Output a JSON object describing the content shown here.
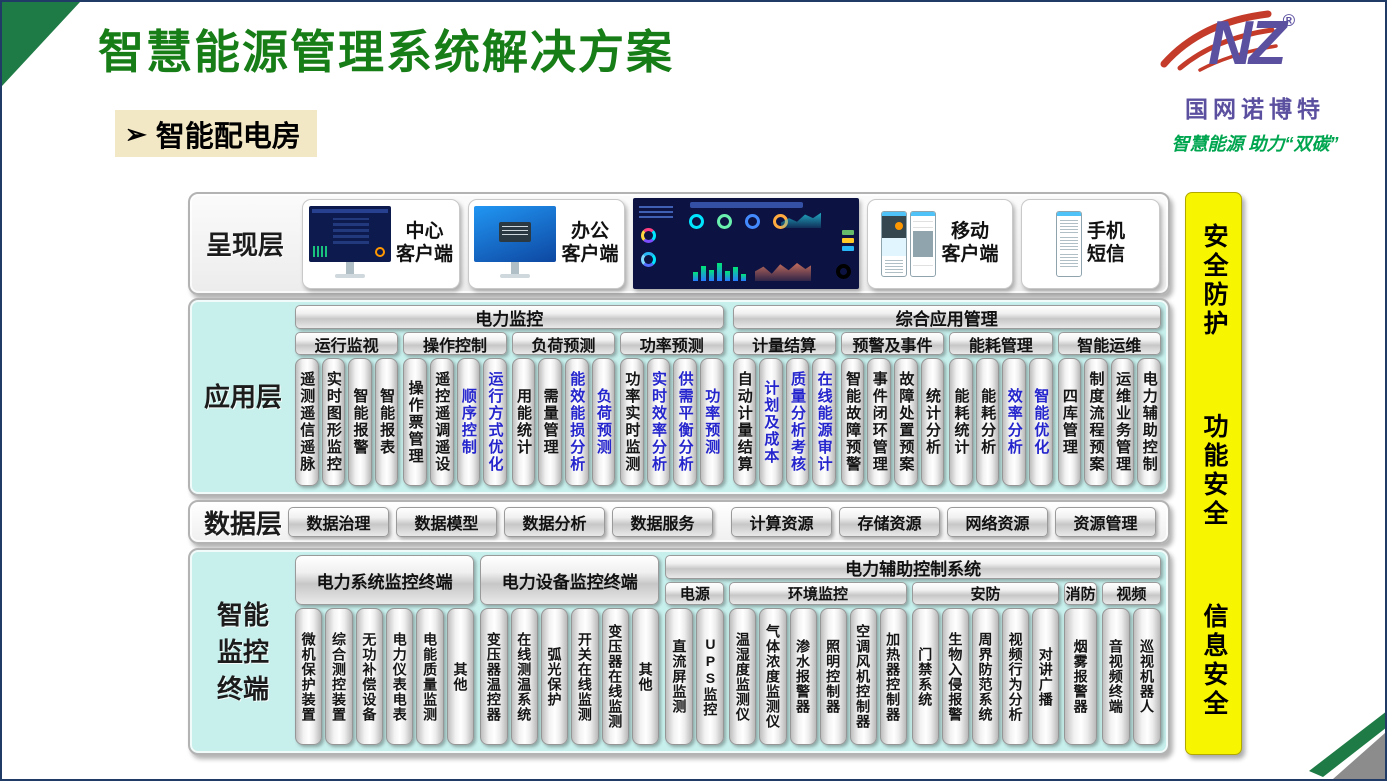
{
  "slide": {
    "title": "智慧能源管理系统解决方案",
    "subtitle": "智能配电房",
    "subtitle_arrow": "➢"
  },
  "logo": {
    "mark": "NZ",
    "reg": "®",
    "company": "国网诺博特",
    "slogan": "智慧能源 助力“双碳”"
  },
  "colors": {
    "title_green": "#177d17",
    "item_blue": "#2525cd",
    "panel_cyan": "#c7efec",
    "security_yellow": "#f7f500",
    "logo_purple": "#5b50a0",
    "slogan_green": "#00a550"
  },
  "presentation_layer": {
    "label": "呈现层",
    "clients": [
      {
        "line1": "中心",
        "line2": "客户端"
      },
      {
        "line1": "办公",
        "line2": "客户端"
      },
      {
        "line1": "移动",
        "line2": "客户端"
      },
      {
        "line1": "手机",
        "line2": "短信"
      }
    ]
  },
  "application_layer": {
    "label": "应用层",
    "sections": [
      {
        "title": "电力监控",
        "groups": [
          {
            "title": "运行监视",
            "items": [
              {
                "label": "遥测遥信遥脉"
              },
              {
                "label": "实时图形监控"
              },
              {
                "label": "智能报警"
              },
              {
                "label": "智能报表"
              }
            ]
          },
          {
            "title": "操作控制",
            "items": [
              {
                "label": "操作票管理"
              },
              {
                "label": "遥控遥调遥设"
              },
              {
                "label": "顺序控制",
                "blue": true
              },
              {
                "label": "运行方式优化",
                "blue": true
              }
            ]
          },
          {
            "title": "负荷预测",
            "items": [
              {
                "label": "用能统计"
              },
              {
                "label": "需量管理"
              },
              {
                "label": "能效能损分析",
                "blue": true
              },
              {
                "label": "负荷预测",
                "blue": true
              }
            ]
          },
          {
            "title": "功率预测",
            "items": [
              {
                "label": "功率实时监测"
              },
              {
                "label": "实时效率分析",
                "blue": true
              },
              {
                "label": "供需平衡分析",
                "blue": true
              },
              {
                "label": "功率预测",
                "blue": true
              }
            ]
          }
        ]
      },
      {
        "title": "综合应用管理",
        "groups": [
          {
            "title": "计量结算",
            "items": [
              {
                "label": "自动计量结算"
              },
              {
                "label": "计划及成本",
                "blue": true
              },
              {
                "label": "质量分析考核",
                "blue": true
              },
              {
                "label": "在线能源审计",
                "blue": true
              }
            ]
          },
          {
            "title": "预警及事件",
            "items": [
              {
                "label": "智能故障预警"
              },
              {
                "label": "事件闭环管理"
              },
              {
                "label": "故障处置预案"
              },
              {
                "label": "统计分析"
              }
            ]
          },
          {
            "title": "能耗管理",
            "items": [
              {
                "label": "能耗统计"
              },
              {
                "label": "能耗分析"
              },
              {
                "label": "效率分析",
                "blue": true
              },
              {
                "label": "智能优化",
                "blue": true
              }
            ]
          },
          {
            "title": "智能运维",
            "items": [
              {
                "label": "四库管理"
              },
              {
                "label": "制度流程预案"
              },
              {
                "label": "运维业务管理"
              },
              {
                "label": "电力辅助控制"
              }
            ]
          }
        ]
      }
    ]
  },
  "data_layer": {
    "label": "数据层",
    "buttons_left": [
      "数据治理",
      "数据模型",
      "数据分析",
      "数据服务"
    ],
    "buttons_right": [
      "计算资源",
      "存储资源",
      "网络资源",
      "资源管理"
    ]
  },
  "terminal_layer": {
    "label": "智能监控终端",
    "groups": [
      {
        "title": "电力系统监控终端",
        "items": [
          "微机保护装置",
          "综合测控装置",
          "无功补偿设备",
          "电力仪表电表",
          "电能质量监测",
          "其他"
        ]
      },
      {
        "title": "电力设备监控终端",
        "items": [
          "变压器温控器",
          "在线测温系统",
          "弧光保护",
          "开关在线监测",
          "变压器在线监测",
          "其他"
        ]
      },
      {
        "title": "电力辅助控制系统",
        "subgroups": [
          {
            "title": "电源",
            "items": [
              "直流屏监测",
              "UPS监控"
            ]
          },
          {
            "title": "环境监控",
            "items": [
              "温湿度监测仪",
              "气体浓度监测仪",
              "渗水报警器",
              "照明控制器",
              "空调风机控制器",
              "加热器控制器"
            ]
          },
          {
            "title": "安防",
            "items": [
              "门禁系统",
              "生物入侵报警",
              "周界防范系统",
              "视频行为分析",
              "对讲广播"
            ]
          },
          {
            "title": "消防",
            "items": [
              "烟雾报警器"
            ]
          },
          {
            "title": "视频",
            "items": [
              "音视频终端",
              "巡视机器人"
            ]
          }
        ]
      }
    ]
  },
  "security_bar": {
    "items": [
      "安全防护",
      "功能安全",
      "信息安全"
    ]
  }
}
